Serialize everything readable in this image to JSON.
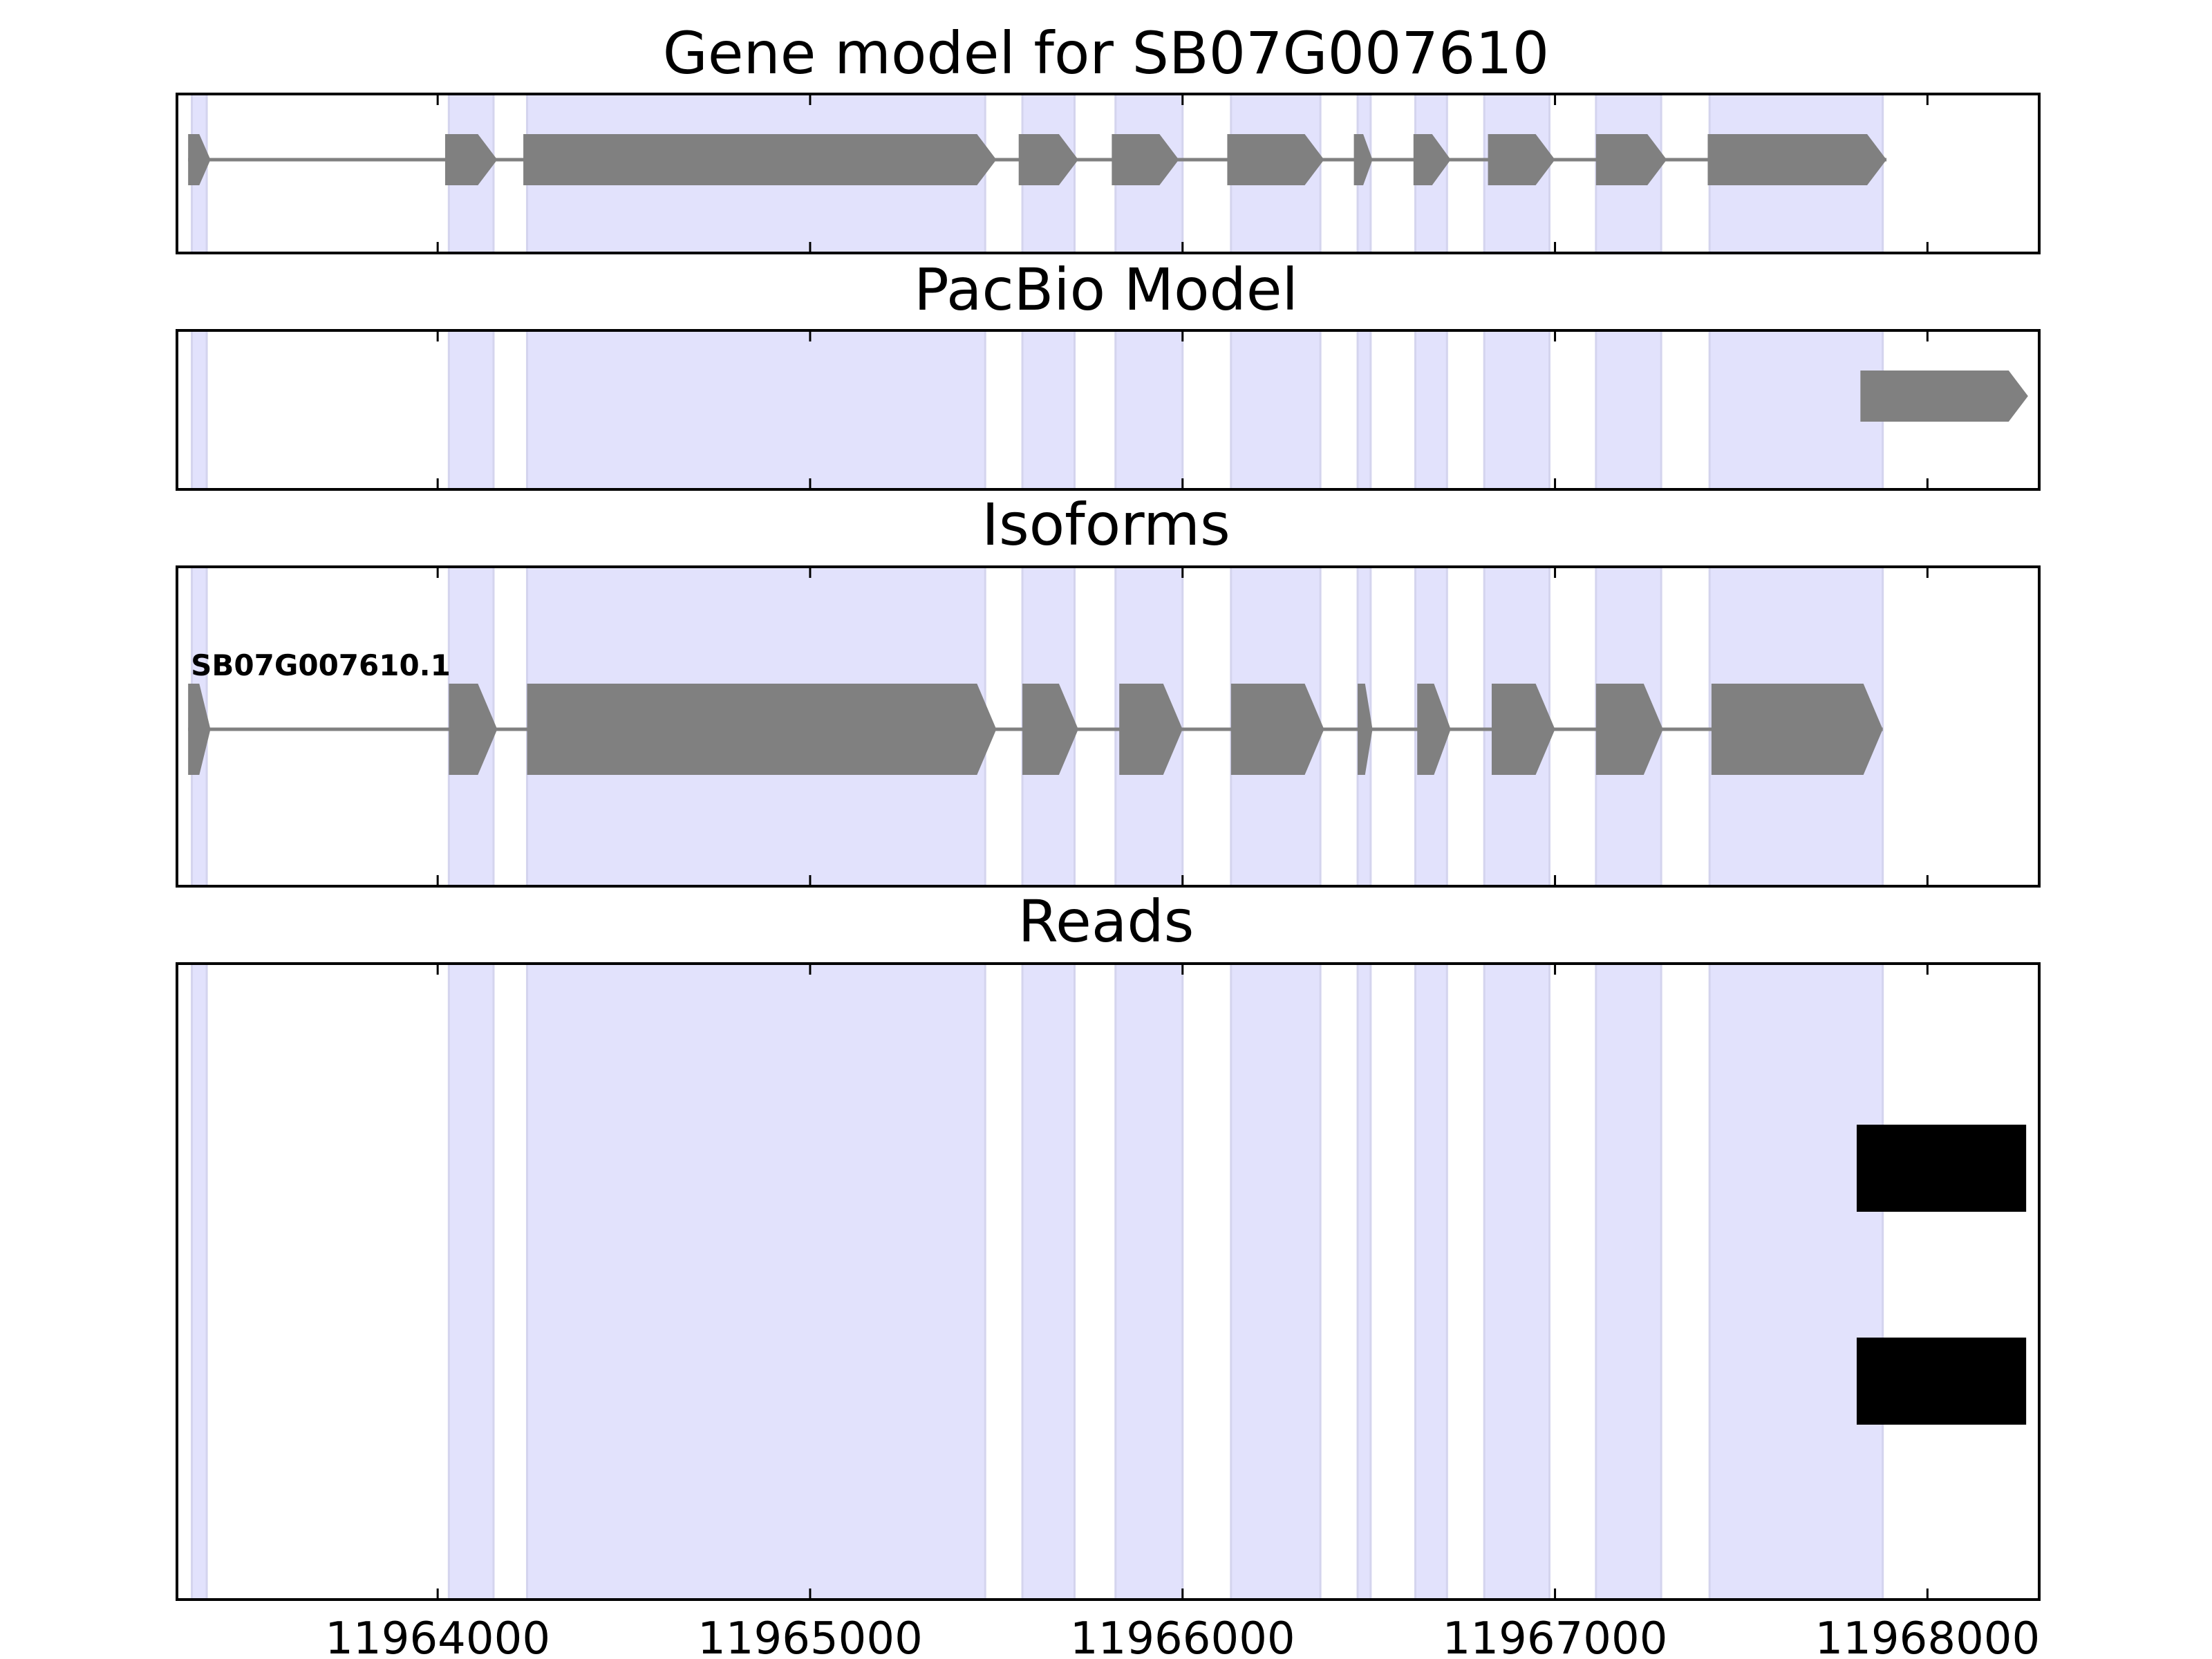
{
  "chart_data": {
    "type": "gene-track",
    "xlim": [
      11963300,
      11968300
    ],
    "x_ticks": [
      11964000,
      11965000,
      11966000,
      11967000,
      11968000
    ],
    "x_tick_labels": [
      "11964000",
      "11965000",
      "11966000",
      "11967000",
      "11968000"
    ],
    "exon_color": "#808080",
    "highlight_color": "#e2e2fc",
    "read_color": "#000000",
    "highlight_regions": [
      [
        11963340,
        11963380
      ],
      [
        11964030,
        11964150
      ],
      [
        11964240,
        11965470
      ],
      [
        11965570,
        11965710
      ],
      [
        11965820,
        11966000
      ],
      [
        11966130,
        11966370
      ],
      [
        11966470,
        11966505
      ],
      [
        11966625,
        11966710
      ],
      [
        11966810,
        11966985
      ],
      [
        11967110,
        11967285
      ],
      [
        11967415,
        11967880
      ]
    ],
    "panels": [
      {
        "title": "Gene model for SB07G007610",
        "models": [
          {
            "name": "",
            "strand": "+",
            "exons": [
              [
                11963330,
                11963390
              ],
              [
                11964020,
                11964160
              ],
              [
                11964230,
                11965500
              ],
              [
                11965560,
                11965720
              ],
              [
                11965810,
                11965990
              ],
              [
                11966120,
                11966380
              ],
              [
                11966460,
                11966510
              ],
              [
                11966620,
                11966720
              ],
              [
                11966820,
                11967000
              ],
              [
                11967110,
                11967300
              ],
              [
                11967410,
                11967890
              ]
            ]
          }
        ]
      },
      {
        "title": "PacBio Model",
        "models": [
          {
            "name": "",
            "strand": "+",
            "exons": [
              [
                11967820,
                11968270
              ]
            ]
          }
        ]
      },
      {
        "title": "Isoforms",
        "models": [
          {
            "name": "SB07G007610.1",
            "strand": "+",
            "exons": [
              [
                11963330,
                11963390
              ],
              [
                11964030,
                11964160
              ],
              [
                11964240,
                11965500
              ],
              [
                11965570,
                11965720
              ],
              [
                11965830,
                11966000
              ],
              [
                11966130,
                11966380
              ],
              [
                11966470,
                11966510
              ],
              [
                11966630,
                11966720
              ],
              [
                11966830,
                11967000
              ],
              [
                11967110,
                11967290
              ],
              [
                11967420,
                11967880
              ]
            ]
          }
        ]
      },
      {
        "title": "Reads",
        "reads": [
          [
            11967810,
            11968265
          ],
          [
            11967810,
            11968265
          ]
        ]
      }
    ]
  }
}
